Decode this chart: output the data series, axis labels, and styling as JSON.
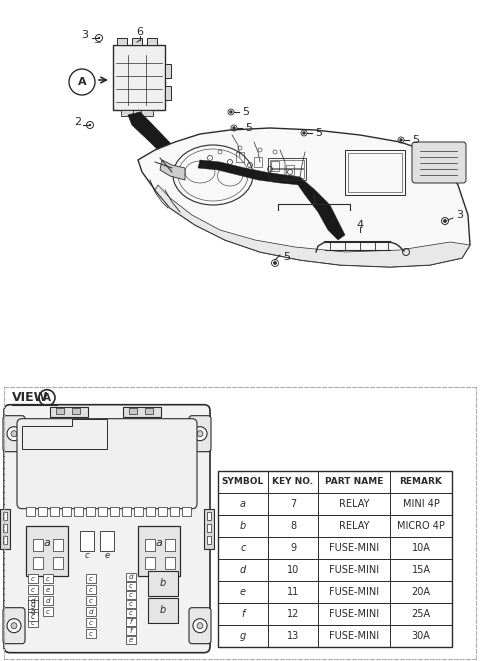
{
  "background_color": "#ffffff",
  "line_color": "#2a2a2a",
  "gray_light": "#d8d8d8",
  "gray_mid": "#b0b0b0",
  "gray_dark": "#808080",
  "table_headers": [
    "SYMBOL",
    "KEY NO.",
    "PART NAME",
    "REMARK"
  ],
  "table_rows": [
    [
      "a",
      "7",
      "RELAY",
      "MINI 4P"
    ],
    [
      "b",
      "8",
      "RELAY",
      "MICRO 4P"
    ],
    [
      "c",
      "9",
      "FUSE-MINI",
      "10A"
    ],
    [
      "d",
      "10",
      "FUSE-MINI",
      "15A"
    ],
    [
      "e",
      "11",
      "FUSE-MINI",
      "20A"
    ],
    [
      "f",
      "12",
      "FUSE-MINI",
      "25A"
    ],
    [
      "g",
      "13",
      "FUSE-MINI",
      "30A"
    ]
  ],
  "fig_width": 4.8,
  "fig_height": 6.61,
  "dpi": 100
}
